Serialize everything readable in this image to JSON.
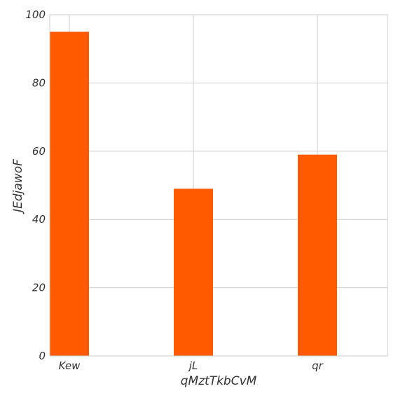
{
  "chart_data": {
    "type": "bar",
    "categories": [
      "Kew",
      "jL",
      "qr"
    ],
    "values": [
      95,
      49,
      59
    ],
    "xlabel": "qMztTkbCvM",
    "ylabel": "JEdjawoF",
    "ylim": [
      0,
      100
    ],
    "yticks": [
      0,
      20,
      40,
      60,
      80,
      100
    ],
    "grid": true,
    "bar_color": "#ff5a00",
    "grid_color": "#cccccc"
  }
}
